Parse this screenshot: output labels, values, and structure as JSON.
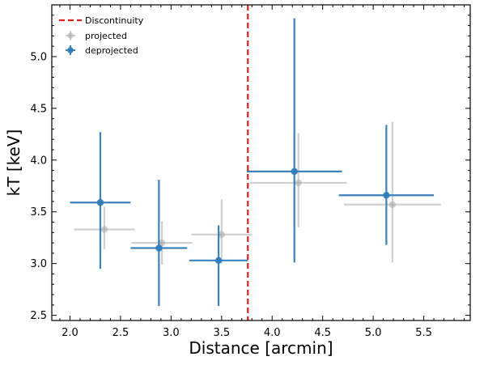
{
  "chart_data": {
    "type": "scatter",
    "xlabel": "Distance [arcmin]",
    "ylabel": "kT [keV]",
    "xlim": [
      1.82,
      5.96
    ],
    "ylim": [
      2.45,
      5.5
    ],
    "xticks": [
      2.0,
      2.5,
      3.0,
      3.5,
      4.0,
      4.5,
      5.0,
      5.5
    ],
    "yticks": [
      2.5,
      3.0,
      3.5,
      4.0,
      4.5,
      5.0
    ],
    "x_tick_labels": [
      "2.0",
      "2.5",
      "3.0",
      "3.5",
      "4.0",
      "4.5",
      "5.0",
      "5.5"
    ],
    "y_tick_labels": [
      "2.5",
      "3.0",
      "3.5",
      "4.0",
      "4.5",
      "5.0"
    ],
    "legend_position": "top-left",
    "discontinuity": {
      "x": 3.76,
      "label": "Discontinuity",
      "color": "#e0201b"
    },
    "series": [
      {
        "name": "projected",
        "color": "#aaaaaa",
        "points": [
          {
            "x": 2.34,
            "xerr": [
              0.3,
              0.3
            ],
            "y": 3.33,
            "yerr": [
              0.19,
              0.22
            ]
          },
          {
            "x": 2.91,
            "xerr": [
              0.3,
              0.3
            ],
            "y": 3.2,
            "yerr": [
              0.21,
              0.21
            ]
          },
          {
            "x": 3.5,
            "xerr": [
              0.3,
              0.3
            ],
            "y": 3.28,
            "yerr": [
              0.28,
              0.34
            ]
          },
          {
            "x": 4.26,
            "xerr": [
              0.48,
              0.48
            ],
            "y": 3.78,
            "yerr": [
              0.43,
              0.48
            ]
          },
          {
            "x": 5.19,
            "xerr": [
              0.48,
              0.48
            ],
            "y": 3.57,
            "yerr": [
              0.56,
              0.8
            ]
          }
        ]
      },
      {
        "name": "deprojected",
        "color": "#2f7cb8",
        "points": [
          {
            "x": 2.3,
            "xerr": [
              0.3,
              0.3
            ],
            "y": 3.59,
            "yerr": [
              0.64,
              0.68
            ]
          },
          {
            "x": 2.88,
            "xerr": [
              0.28,
              0.28
            ],
            "y": 3.15,
            "yerr": [
              0.56,
              0.66
            ]
          },
          {
            "x": 3.47,
            "xerr": [
              0.29,
              0.29
            ],
            "y": 3.03,
            "yerr": [
              0.44,
              0.34
            ]
          },
          {
            "x": 4.22,
            "xerr": [
              0.47,
              0.47
            ],
            "y": 3.89,
            "yerr": [
              0.88,
              1.48
            ]
          },
          {
            "x": 5.13,
            "xerr": [
              0.47,
              0.47
            ],
            "y": 3.66,
            "yerr": [
              0.48,
              0.68
            ]
          }
        ]
      }
    ]
  }
}
